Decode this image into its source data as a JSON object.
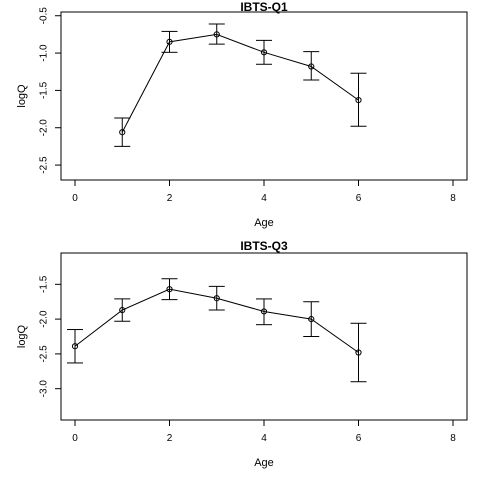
{
  "chart_data": [
    {
      "type": "line",
      "title": "IBTS-Q1",
      "xlabel": "Age",
      "ylabel": "logQ",
      "xlim": [
        0,
        8
      ],
      "ylim": [
        -2.7,
        -0.45
      ],
      "xticks": [
        0,
        2,
        4,
        6,
        8
      ],
      "yticks": [
        -0.5,
        -1.0,
        -1.5,
        -2.0,
        -2.5
      ],
      "ytick_labels": [
        "-0.5",
        "-1.0",
        "-1.5",
        "-2.0",
        "-2.5"
      ],
      "grid": false,
      "x": [
        1,
        2,
        3,
        4,
        5,
        6
      ],
      "y": [
        -2.06,
        -0.85,
        -0.75,
        -0.99,
        -1.18,
        -1.63
      ],
      "lower": [
        -2.25,
        -0.99,
        -0.88,
        -1.15,
        -1.36,
        -1.98
      ],
      "upper": [
        -1.87,
        -0.71,
        -0.61,
        -0.83,
        -0.98,
        -1.27
      ]
    },
    {
      "type": "line",
      "title": "IBTS-Q3",
      "xlabel": "Age",
      "ylabel": "logQ",
      "xlim": [
        0,
        8
      ],
      "ylim": [
        -3.45,
        -1.05
      ],
      "xticks": [
        0,
        2,
        4,
        6,
        8
      ],
      "yticks": [
        -1.5,
        -2.0,
        -2.5,
        -3.0
      ],
      "ytick_labels": [
        "-1.5",
        "-2.0",
        "-2.5",
        "-3.0"
      ],
      "grid": false,
      "x": [
        0,
        1,
        2,
        3,
        4,
        5,
        6
      ],
      "y": [
        -2.39,
        -1.87,
        -1.57,
        -1.7,
        -1.89,
        -2.0,
        -2.48
      ],
      "lower": [
        -2.63,
        -2.03,
        -1.72,
        -1.87,
        -2.08,
        -2.25,
        -2.9
      ],
      "upper": [
        -2.15,
        -1.71,
        -1.42,
        -1.53,
        -1.71,
        -1.75,
        -2.06
      ]
    }
  ]
}
